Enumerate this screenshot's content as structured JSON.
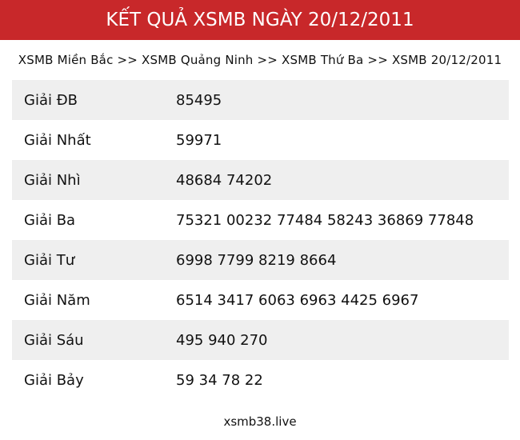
{
  "header": {
    "title": "KẾT QUẢ XSMB NGÀY 20/12/2011",
    "color": "#c8282a"
  },
  "breadcrumb": {
    "items": [
      "XSMB Miền Bắc",
      "XSMB Quảng Ninh",
      "XSMB Thứ Ba",
      "XSMB 20/12/2011"
    ],
    "separator": ">>"
  },
  "results": [
    {
      "label": "Giải ĐB",
      "value": "85495"
    },
    {
      "label": "Giải Nhất",
      "value": "59971"
    },
    {
      "label": "Giải Nhì",
      "value": "48684 74202"
    },
    {
      "label": "Giải Ba",
      "value": "75321 00232 77484 58243 36869 77848"
    },
    {
      "label": "Giải Tư",
      "value": "6998 7799 8219 8664"
    },
    {
      "label": "Giải Năm",
      "value": "6514 3417 6063 6963 4425 6967"
    },
    {
      "label": "Giải Sáu",
      "value": "495 940 270"
    },
    {
      "label": "Giải Bảy",
      "value": "59 34 78 22"
    }
  ],
  "footer": {
    "site": "xsmb38.live"
  }
}
